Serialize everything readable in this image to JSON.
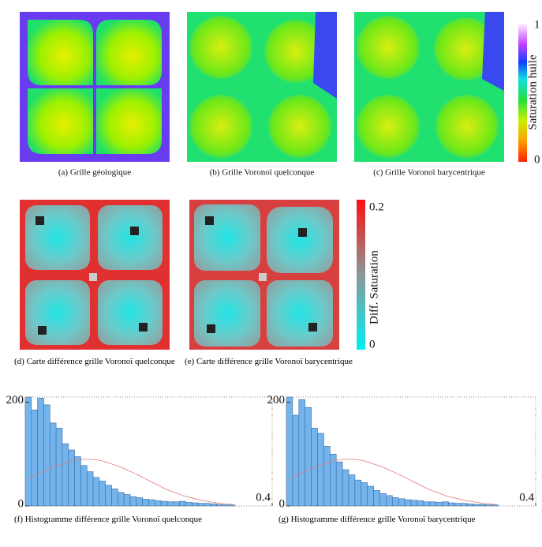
{
  "captions": [
    "(a) Grille géologique",
    "(b) Grille Voronoï quelconque",
    "(c) Grille Voronoï barycentrique",
    "(d) Carte différence grille Voronoï quelconque",
    "(e) Carte différence grille Voronoï barycentrique",
    "(f) Histogramme différence grille Voronoï quelconque",
    "(g) Histogramme différence grille Voronoï barycentrique"
  ],
  "colorbar_top": {
    "label": "Saturation huile",
    "ticks": [
      0,
      1
    ]
  },
  "colorbar_mid": {
    "label": "Diff. Saturation",
    "ticks": [
      0,
      0.2
    ]
  },
  "chart_data": [
    {
      "type": "histogram",
      "color": "#74b4ec",
      "fit_color": "#e07878",
      "bins": [
        0,
        0.01,
        0.02,
        0.03,
        0.04,
        0.05,
        0.06,
        0.07,
        0.08,
        0.09,
        0.1,
        0.11,
        0.12,
        0.13,
        0.14,
        0.15,
        0.16,
        0.17,
        0.18,
        0.19,
        0.2,
        0.21,
        0.22,
        0.23,
        0.24,
        0.25,
        0.26,
        0.27,
        0.28,
        0.29,
        0.3,
        0.31,
        0.32,
        0.33,
        0.34
      ],
      "values": [
        210,
        185,
        208,
        195,
        160,
        150,
        120,
        108,
        95,
        78,
        66,
        55,
        48,
        40,
        33,
        26,
        22,
        18,
        16,
        13,
        12,
        10,
        9,
        8,
        8,
        9,
        7,
        6,
        5,
        5,
        4,
        3,
        2,
        2
      ],
      "fit_x": [
        0.005,
        0.015,
        0.025,
        0.035,
        0.045,
        0.055,
        0.065,
        0.075,
        0.085,
        0.095,
        0.105,
        0.115,
        0.125,
        0.135,
        0.145,
        0.155,
        0.165,
        0.175,
        0.185,
        0.195,
        0.205,
        0.215,
        0.225,
        0.235,
        0.245,
        0.255,
        0.265,
        0.275,
        0.285,
        0.295,
        0.305,
        0.315,
        0.325,
        0.335
      ],
      "fit_values": [
        52,
        58,
        64,
        69,
        75,
        79,
        83,
        87,
        89,
        90,
        90,
        89,
        87,
        83,
        79,
        75,
        69,
        64,
        58,
        52,
        46,
        40,
        34,
        29,
        25,
        20,
        17,
        14,
        11,
        9,
        7,
        5,
        4,
        3
      ],
      "xlim": [
        0,
        0.4
      ],
      "xticks": [
        0.4
      ],
      "ylim": [
        0,
        210
      ],
      "yticks": [
        0,
        200
      ]
    },
    {
      "type": "histogram",
      "color": "#74b4ec",
      "fit_color": "#e07878",
      "bins": [
        0,
        0.01,
        0.02,
        0.03,
        0.04,
        0.05,
        0.06,
        0.07,
        0.08,
        0.09,
        0.1,
        0.11,
        0.12,
        0.13,
        0.14,
        0.15,
        0.16,
        0.17,
        0.18,
        0.19,
        0.2,
        0.21,
        0.22,
        0.23,
        0.24,
        0.25,
        0.26,
        0.27,
        0.28,
        0.29,
        0.3,
        0.31,
        0.32,
        0.33,
        0.34
      ],
      "values": [
        210,
        175,
        205,
        190,
        150,
        140,
        115,
        100,
        85,
        70,
        60,
        50,
        45,
        38,
        30,
        24,
        20,
        16,
        14,
        12,
        11,
        10,
        8,
        8,
        7,
        8,
        6,
        5,
        5,
        4,
        3,
        3,
        2,
        2
      ],
      "fit_x": [
        0.005,
        0.015,
        0.025,
        0.035,
        0.045,
        0.055,
        0.065,
        0.075,
        0.085,
        0.095,
        0.105,
        0.115,
        0.125,
        0.135,
        0.145,
        0.155,
        0.165,
        0.175,
        0.185,
        0.195,
        0.205,
        0.215,
        0.225,
        0.235,
        0.245,
        0.255,
        0.265,
        0.275,
        0.285,
        0.295,
        0.305,
        0.315,
        0.325,
        0.335
      ],
      "fit_values": [
        52,
        58,
        64,
        69,
        75,
        79,
        83,
        87,
        89,
        90,
        90,
        89,
        87,
        83,
        79,
        75,
        69,
        64,
        58,
        52,
        46,
        40,
        34,
        29,
        25,
        20,
        17,
        14,
        11,
        9,
        7,
        5,
        4,
        3
      ],
      "xlim": [
        0,
        0.4
      ],
      "xticks": [
        0.4
      ],
      "ylim": [
        0,
        210
      ],
      "yticks": [
        0,
        200
      ]
    }
  ]
}
